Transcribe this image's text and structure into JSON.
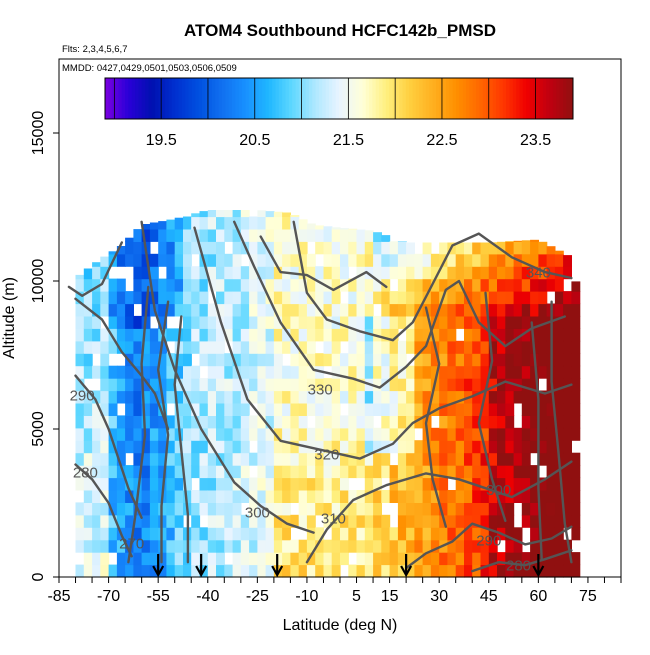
{
  "chart_data": {
    "type": "heatmap",
    "title": "ATOM4 Southbound HCFC142b_PMSD",
    "flights_label": "Flts: 2,3,4,5,6,7",
    "dates_label": "MMDD: 0427,0429,0501,0503,0506,0509",
    "xlabel": "Latitude (deg N)",
    "ylabel": "Altitude (m)",
    "xlim": [
      -85,
      85
    ],
    "ylim": [
      0,
      17500
    ],
    "x_ticks": [
      -85,
      -70,
      -55,
      -40,
      -25,
      -10,
      5,
      15,
      30,
      45,
      60,
      75
    ],
    "y_ticks": [
      0,
      5000,
      10000,
      15000
    ],
    "colorbar": {
      "range": [
        18.9,
        23.9
      ],
      "ticks": [
        19.5,
        20.5,
        21.5,
        22.5,
        23.5
      ],
      "colors": [
        "#7b00e0",
        "#2a00d8",
        "#0010b0",
        "#0030d0",
        "#0050e0",
        "#1070f0",
        "#1890ff",
        "#20b8ff",
        "#60d8ff",
        "#b0e8ff",
        "#e8f4ff",
        "#ffffd8",
        "#fff080",
        "#ffd040",
        "#ffb020",
        "#ff9000",
        "#ff6800",
        "#ff3800",
        "#f00000",
        "#c00010",
        "#901010"
      ]
    },
    "contour_labels": [
      {
        "text": "340",
        "lat": 60,
        "alt": 10250
      },
      {
        "text": "330",
        "lat": -6,
        "alt": 6300
      },
      {
        "text": "320",
        "lat": -4,
        "alt": 4100
      },
      {
        "text": "310",
        "lat": -2,
        "alt": 1950
      },
      {
        "text": "300",
        "lat": -25,
        "alt": 2150
      },
      {
        "text": "300",
        "lat": 48,
        "alt": 2900
      },
      {
        "text": "290",
        "lat": -78,
        "alt": 6100
      },
      {
        "text": "290",
        "lat": 45,
        "alt": 1200
      },
      {
        "text": "280",
        "lat": -77,
        "alt": 3500
      },
      {
        "text": "280",
        "lat": 54,
        "alt": 350
      },
      {
        "text": "270",
        "lat": -63,
        "alt": 1100
      }
    ],
    "profile_markers_lat": [
      -55,
      -42,
      -19,
      20,
      60
    ]
  }
}
